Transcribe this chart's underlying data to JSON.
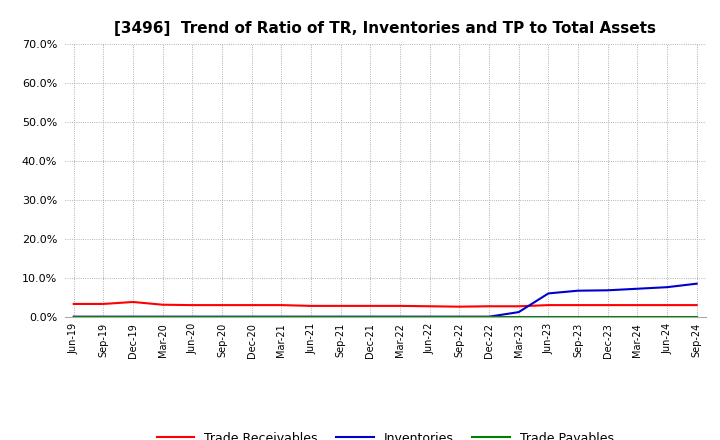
{
  "title": "[3496]  Trend of Ratio of TR, Inventories and TP to Total Assets",
  "x_labels": [
    "Jun-19",
    "Sep-19",
    "Dec-19",
    "Mar-20",
    "Jun-20",
    "Sep-20",
    "Dec-20",
    "Mar-21",
    "Jun-21",
    "Sep-21",
    "Dec-21",
    "Mar-22",
    "Jun-22",
    "Sep-22",
    "Dec-22",
    "Mar-23",
    "Jun-23",
    "Sep-23",
    "Dec-23",
    "Mar-24",
    "Jun-24",
    "Sep-24"
  ],
  "trade_receivables": [
    0.033,
    0.033,
    0.038,
    0.031,
    0.03,
    0.03,
    0.03,
    0.03,
    0.028,
    0.028,
    0.028,
    0.028,
    0.027,
    0.026,
    0.027,
    0.027,
    0.03,
    0.03,
    0.03,
    0.03,
    0.03,
    0.03
  ],
  "inventories": [
    0.0003,
    0.0003,
    0.0003,
    0.0003,
    0.0003,
    0.0003,
    0.0003,
    0.0003,
    0.0003,
    0.0003,
    0.0003,
    0.0003,
    0.0003,
    0.0003,
    0.0003,
    0.012,
    0.06,
    0.067,
    0.068,
    0.072,
    0.076,
    0.085
  ],
  "trade_payables": [
    0.0002,
    0.0002,
    0.0002,
    0.0002,
    0.0002,
    0.0002,
    0.0002,
    0.0002,
    0.0002,
    0.0002,
    0.0002,
    0.0002,
    0.0002,
    0.0002,
    0.0002,
    0.0002,
    0.0002,
    0.0002,
    0.0002,
    0.0002,
    0.0002,
    0.0002
  ],
  "tr_color": "#FF0000",
  "inv_color": "#0000CD",
  "tp_color": "#008000",
  "ylim": [
    0.0,
    0.7
  ],
  "yticks": [
    0.0,
    0.1,
    0.2,
    0.3,
    0.4,
    0.5,
    0.6,
    0.7
  ],
  "background_color": "#FFFFFF",
  "grid_color": "#999999",
  "title_fontsize": 11,
  "legend_labels": [
    "Trade Receivables",
    "Inventories",
    "Trade Payables"
  ]
}
